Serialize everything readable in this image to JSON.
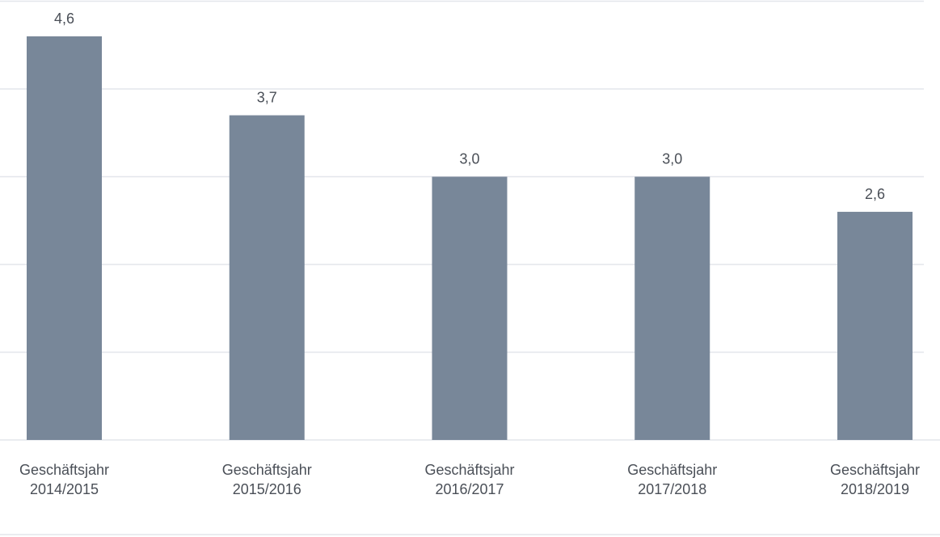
{
  "chart_data": {
    "type": "bar",
    "categories": [
      [
        "Geschäftsjahr",
        "2014/2015"
      ],
      [
        "Geschäftsjahr",
        "2015/2016"
      ],
      [
        "Geschäftsjahr",
        "2016/2017"
      ],
      [
        "Geschäftsjahr",
        "2017/2018"
      ],
      [
        "Geschäftsjahr",
        "2018/2019"
      ]
    ],
    "values": [
      4.6,
      3.7,
      3.0,
      3.0,
      2.6
    ],
    "value_labels": [
      "4,6",
      "3,7",
      "3,0",
      "3,0",
      "2,6"
    ],
    "title": "",
    "xlabel": "",
    "ylabel": "",
    "ylim": [
      0,
      5
    ],
    "grid": true,
    "legend": "none",
    "colors": {
      "bar": "#788799",
      "grid": "#e3e6ec",
      "text": "#4a4f57"
    }
  }
}
